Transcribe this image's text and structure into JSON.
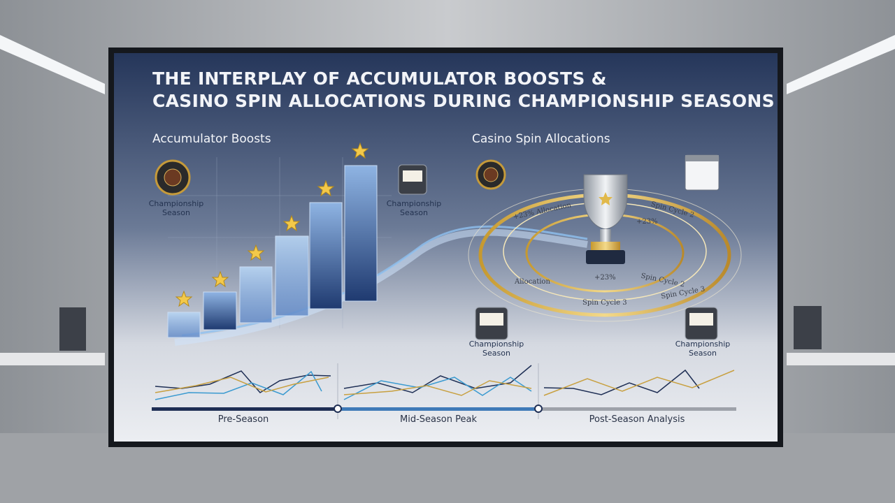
{
  "title": {
    "line1": "THE INTERPLAY OF ACCUMULATOR BOOSTS &",
    "line2": "CASINO SPIN ALLOCATIONS DURING CHAMPIONSHIP SEASONS"
  },
  "left_panel": {
    "heading": "Accumulator Boosts",
    "icon_labels": [
      "Championship Season",
      "Championship Season"
    ]
  },
  "right_panel": {
    "heading": "Casino Spin Allocations",
    "ring_labels": [
      "+23% Allocation",
      "Spin Cycle 2",
      "+23%",
      "+23%",
      "Allocation",
      "Spin Cycle 3",
      "Spin Cycle 2",
      "Spin Cycle 3"
    ],
    "icon_labels": [
      "Championship Season",
      "Championship Season"
    ]
  },
  "timeline": {
    "phases": [
      "Pre-Season",
      "Mid-Season Peak",
      "Post-Season Analysis"
    ]
  }
}
